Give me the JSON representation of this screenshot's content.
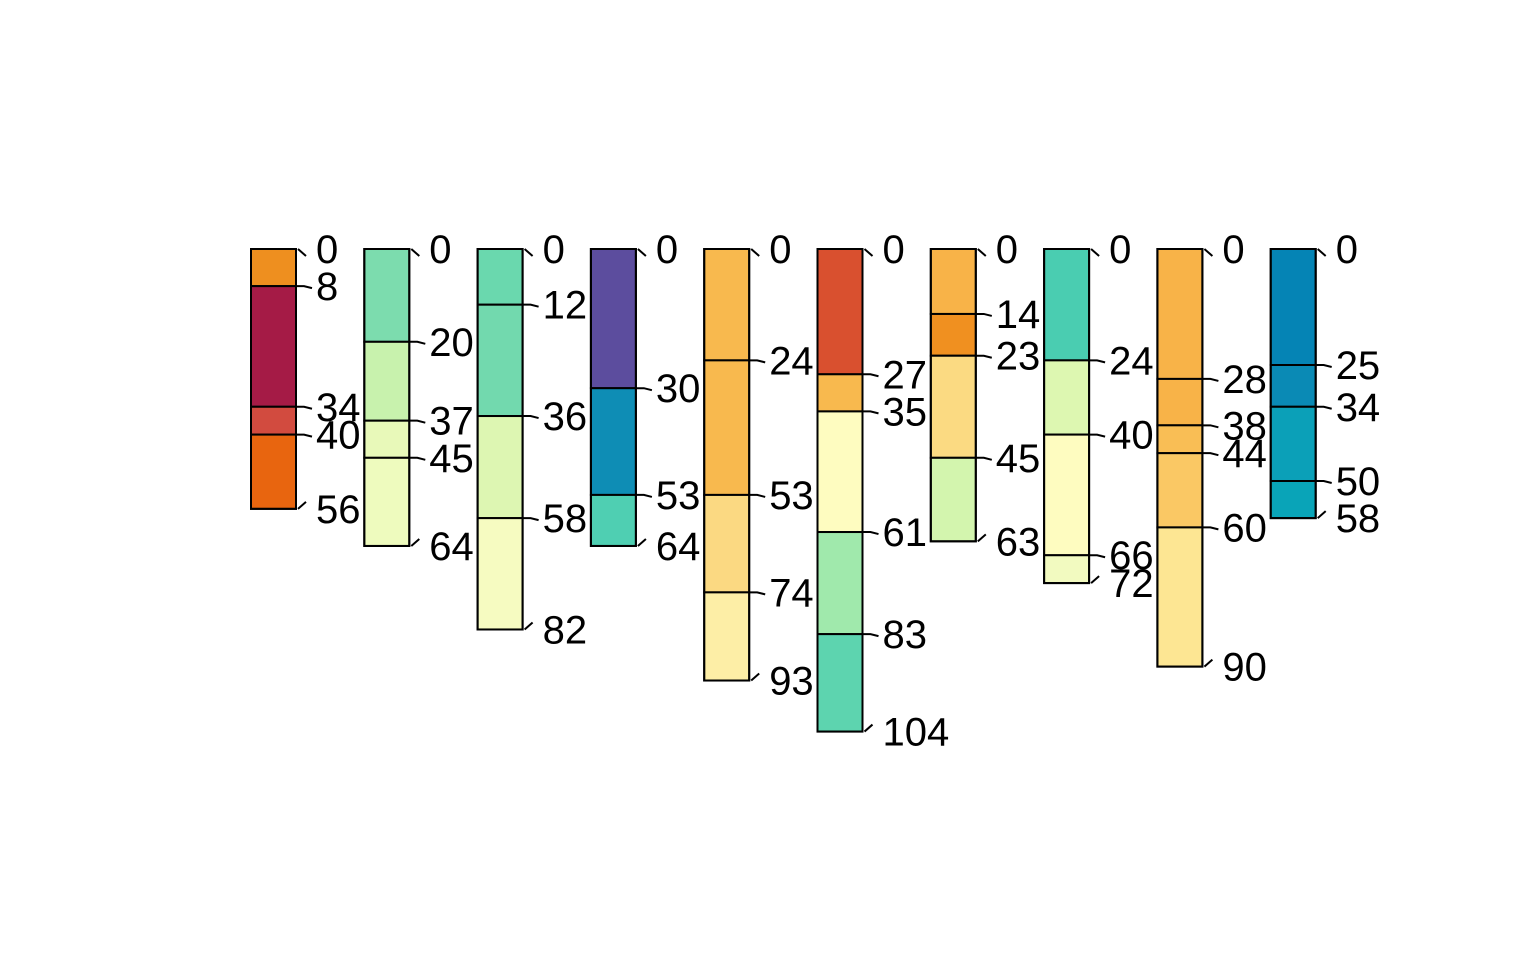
{
  "chart_data": {
    "type": "bar",
    "subtype": "soil-profile-sketch",
    "title": "",
    "xlabel": "",
    "ylabel": "",
    "depth_range": [
      0,
      104
    ],
    "grid": false,
    "legend": "none",
    "profiles": [
      {
        "bottom": 56,
        "horizons": [
          {
            "top": 0,
            "bottom": 8,
            "color": "#EE8F1F"
          },
          {
            "top": 8,
            "bottom": 34,
            "color": "#A51B46"
          },
          {
            "top": 34,
            "bottom": 40,
            "color": "#D24B3F"
          },
          {
            "top": 40,
            "bottom": 56,
            "color": "#E8650F"
          }
        ]
      },
      {
        "bottom": 64,
        "horizons": [
          {
            "top": 0,
            "bottom": 20,
            "color": "#7CDCAE"
          },
          {
            "top": 20,
            "bottom": 37,
            "color": "#C8F2AD"
          },
          {
            "top": 37,
            "bottom": 45,
            "color": "#E8F9B9"
          },
          {
            "top": 45,
            "bottom": 64,
            "color": "#EEFBBE"
          }
        ]
      },
      {
        "bottom": 82,
        "horizons": [
          {
            "top": 0,
            "bottom": 12,
            "color": "#6AD8AE"
          },
          {
            "top": 12,
            "bottom": 36,
            "color": "#72D9AE"
          },
          {
            "top": 36,
            "bottom": 58,
            "color": "#DDF6B2"
          },
          {
            "top": 58,
            "bottom": 82,
            "color": "#F6FBC1"
          }
        ]
      },
      {
        "bottom": 64,
        "horizons": [
          {
            "top": 0,
            "bottom": 30,
            "color": "#5C4D9E"
          },
          {
            "top": 30,
            "bottom": 53,
            "color": "#0E8DB5"
          },
          {
            "top": 53,
            "bottom": 64,
            "color": "#4FCFB2"
          }
        ]
      },
      {
        "bottom": 93,
        "horizons": [
          {
            "top": 0,
            "bottom": 24,
            "color": "#F8B94E"
          },
          {
            "top": 24,
            "bottom": 53,
            "color": "#F8B94E"
          },
          {
            "top": 53,
            "bottom": 74,
            "color": "#FBD982"
          },
          {
            "top": 74,
            "bottom": 93,
            "color": "#FDEEA6"
          }
        ]
      },
      {
        "bottom": 104,
        "horizons": [
          {
            "top": 0,
            "bottom": 27,
            "color": "#D9502F"
          },
          {
            "top": 27,
            "bottom": 35,
            "color": "#F8B94E"
          },
          {
            "top": 35,
            "bottom": 61,
            "color": "#FEFCC0"
          },
          {
            "top": 61,
            "bottom": 83,
            "color": "#A0E9AC"
          },
          {
            "top": 83,
            "bottom": 104,
            "color": "#5DD4AF"
          }
        ]
      },
      {
        "bottom": 63,
        "horizons": [
          {
            "top": 0,
            "bottom": 14,
            "color": "#F8B348"
          },
          {
            "top": 14,
            "bottom": 23,
            "color": "#F09020"
          },
          {
            "top": 23,
            "bottom": 45,
            "color": "#FBDA82"
          },
          {
            "top": 45,
            "bottom": 63,
            "color": "#D3F5AE"
          }
        ]
      },
      {
        "bottom": 72,
        "horizons": [
          {
            "top": 0,
            "bottom": 24,
            "color": "#4ACDB1"
          },
          {
            "top": 24,
            "bottom": 40,
            "color": "#DDF7B1"
          },
          {
            "top": 40,
            "bottom": 66,
            "color": "#FEFCC0"
          },
          {
            "top": 66,
            "bottom": 72,
            "color": "#F2FAC0"
          }
        ]
      },
      {
        "bottom": 90,
        "horizons": [
          {
            "top": 0,
            "bottom": 28,
            "color": "#F8B348"
          },
          {
            "top": 28,
            "bottom": 38,
            "color": "#F8B348"
          },
          {
            "top": 38,
            "bottom": 44,
            "color": "#F9BE55"
          },
          {
            "top": 44,
            "bottom": 60,
            "color": "#FAC864"
          },
          {
            "top": 60,
            "bottom": 90,
            "color": "#FDE693"
          }
        ]
      },
      {
        "bottom": 58,
        "horizons": [
          {
            "top": 0,
            "bottom": 25,
            "color": "#0584B5"
          },
          {
            "top": 25,
            "bottom": 34,
            "color": "#0A8AB5"
          },
          {
            "top": 34,
            "bottom": 50,
            "color": "#0BA0B8"
          },
          {
            "top": 50,
            "bottom": 58,
            "color": "#09A4B8"
          }
        ]
      }
    ]
  }
}
